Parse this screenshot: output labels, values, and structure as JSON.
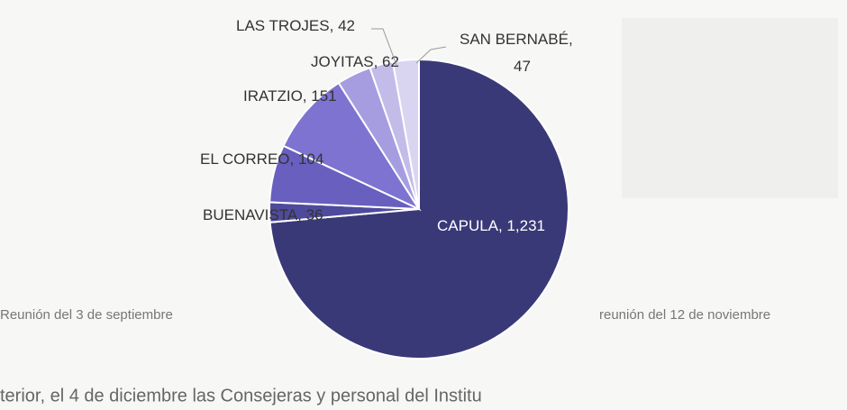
{
  "chart_data": {
    "type": "pie",
    "categories": [
      "CAPULA",
      "BUENAVISTA",
      "EL CORREO",
      "IRATZIO",
      "JOYITAS",
      "LAS TROJES",
      "SAN BERNABÉ"
    ],
    "values": [
      1231,
      36,
      104,
      151,
      62,
      42,
      47
    ],
    "value_labels": [
      "1,231",
      "36",
      "104",
      "151",
      "62",
      "42",
      "47"
    ],
    "colors": [
      "#3a3978",
      "#4e4a9c",
      "#695fbf",
      "#7e73d0",
      "#a69de0",
      "#c3bce9",
      "#d9d5f1"
    ]
  },
  "page_text": [
    "Reunión del 3 de septiembre",
    "reunión del 12 de noviembre",
    "terior, el 4 de diciembre las Consejeras y personal del Institu"
  ]
}
